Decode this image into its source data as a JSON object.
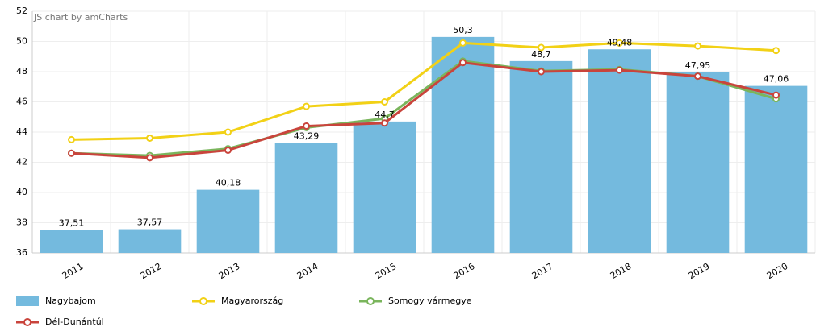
{
  "chart_data": {
    "type": "bar",
    "annotation": "JS chart by amCharts",
    "categories": [
      "2011",
      "2012",
      "2013",
      "2014",
      "2015",
      "2016",
      "2017",
      "2018",
      "2019",
      "2020"
    ],
    "ylim": [
      36,
      52
    ],
    "yticks": [
      36,
      38,
      40,
      42,
      44,
      46,
      48,
      50,
      52
    ],
    "grid": true,
    "series": [
      {
        "name": "Nagybajom",
        "type": "bar",
        "color": "#74bade",
        "values": [
          37.51,
          37.57,
          40.18,
          43.29,
          44.7,
          50.3,
          48.7,
          49.48,
          47.95,
          47.06
        ],
        "value_labels": [
          "37,51",
          "37,57",
          "40,18",
          "43,29",
          "44,7",
          "50,3",
          "48,7",
          "49,48",
          "47,95",
          "47,06"
        ]
      },
      {
        "name": "Magyarország",
        "type": "line",
        "color": "#f2d116",
        "values": [
          43.5,
          43.6,
          44.0,
          45.7,
          46.0,
          49.9,
          49.6,
          49.9,
          49.7,
          49.4
        ]
      },
      {
        "name": "Somogy vármegye",
        "type": "line",
        "color": "#7ab55c",
        "values": [
          42.6,
          42.45,
          42.9,
          44.3,
          44.9,
          48.7,
          48.05,
          48.15,
          47.7,
          46.2
        ]
      },
      {
        "name": "Dél-Dunántúl",
        "type": "line",
        "color": "#c9443c",
        "values": [
          42.6,
          42.3,
          42.8,
          44.4,
          44.6,
          48.6,
          48.0,
          48.1,
          47.7,
          46.45
        ]
      }
    ]
  }
}
